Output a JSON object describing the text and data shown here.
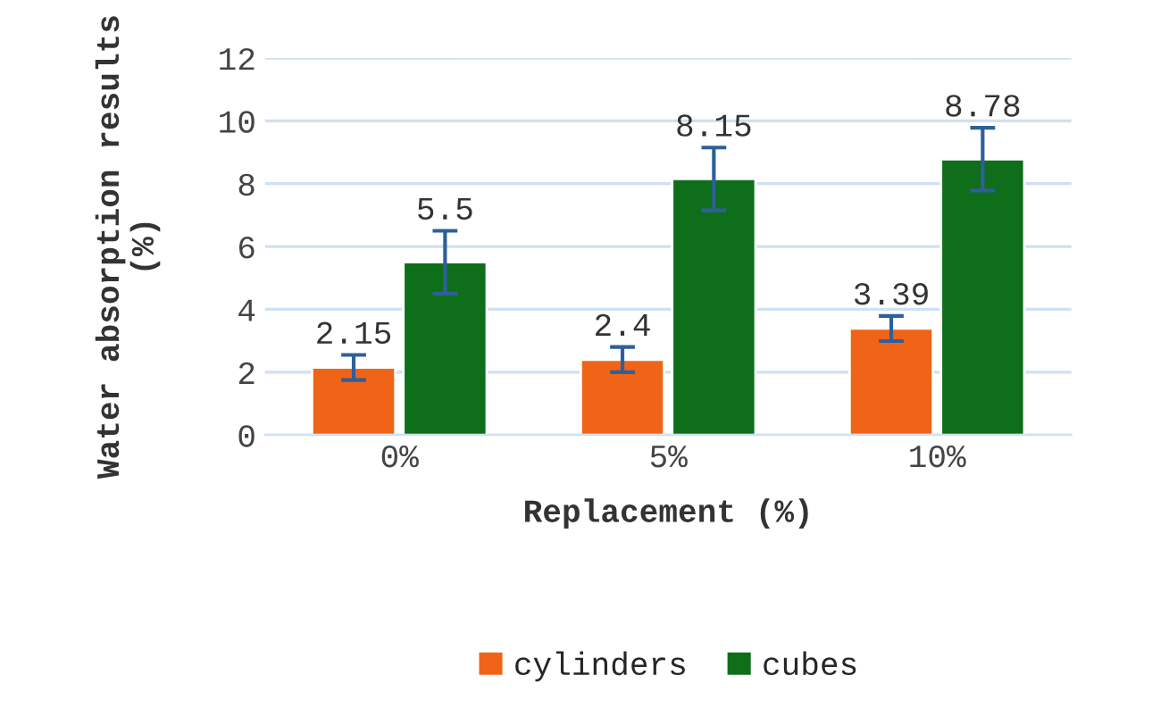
{
  "chart_data": {
    "type": "bar",
    "xlabel": "Replacement (%)",
    "ylabel": "Water absorption results (%)",
    "categories": [
      "0%",
      "5%",
      "10%"
    ],
    "series": [
      {
        "name": "cylinders",
        "color": "#f06418",
        "values": [
          2.15,
          2.4,
          3.39
        ],
        "errors": [
          0.4,
          0.4,
          0.4
        ]
      },
      {
        "name": "cubes",
        "color": "#0e6e1a",
        "values": [
          5.5,
          8.15,
          8.78
        ],
        "errors": [
          1.0,
          1.0,
          1.0
        ]
      }
    ],
    "ylim": [
      0,
      12
    ],
    "yticks": [
      0,
      2,
      4,
      6,
      8,
      10,
      12
    ],
    "grid": "y",
    "legend": "bottom",
    "data_labels": true
  }
}
